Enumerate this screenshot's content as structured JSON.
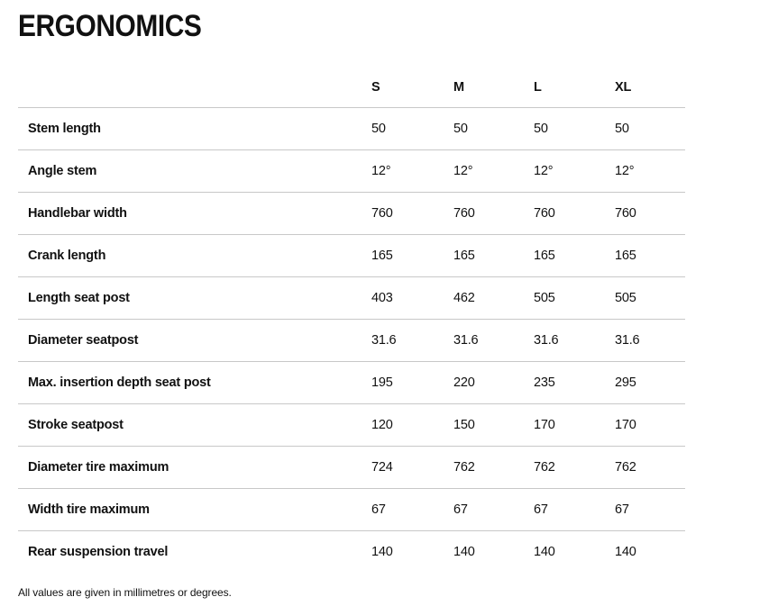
{
  "page": {
    "title": "ERGONOMICS",
    "footnote": "All values are given in millimetres or degrees."
  },
  "table": {
    "columns": [
      "S",
      "M",
      "L",
      "XL"
    ],
    "rows": [
      {
        "label": "Stem length",
        "values": [
          "50",
          "50",
          "50",
          "50"
        ]
      },
      {
        "label": "Angle stem",
        "values": [
          "12°",
          "12°",
          "12°",
          "12°"
        ]
      },
      {
        "label": "Handlebar width",
        "values": [
          "760",
          "760",
          "760",
          "760"
        ]
      },
      {
        "label": "Crank length",
        "values": [
          "165",
          "165",
          "165",
          "165"
        ]
      },
      {
        "label": "Length seat post",
        "values": [
          "403",
          "462",
          "505",
          "505"
        ]
      },
      {
        "label": "Diameter seatpost",
        "values": [
          "31.6",
          "31.6",
          "31.6",
          "31.6"
        ]
      },
      {
        "label": "Max. insertion depth seat post",
        "values": [
          "195",
          "220",
          "235",
          "295"
        ]
      },
      {
        "label": "Stroke seatpost",
        "values": [
          "120",
          "150",
          "170",
          "170"
        ]
      },
      {
        "label": "Diameter tire maximum",
        "values": [
          "724",
          "762",
          "762",
          "762"
        ]
      },
      {
        "label": "Width tire maximum",
        "values": [
          "67",
          "67",
          "67",
          "67"
        ]
      },
      {
        "label": "Rear suspension travel",
        "values": [
          "140",
          "140",
          "140",
          "140"
        ]
      }
    ]
  },
  "colors": {
    "text": "#111111",
    "divider": "#c8c8c8",
    "background": "#ffffff"
  }
}
